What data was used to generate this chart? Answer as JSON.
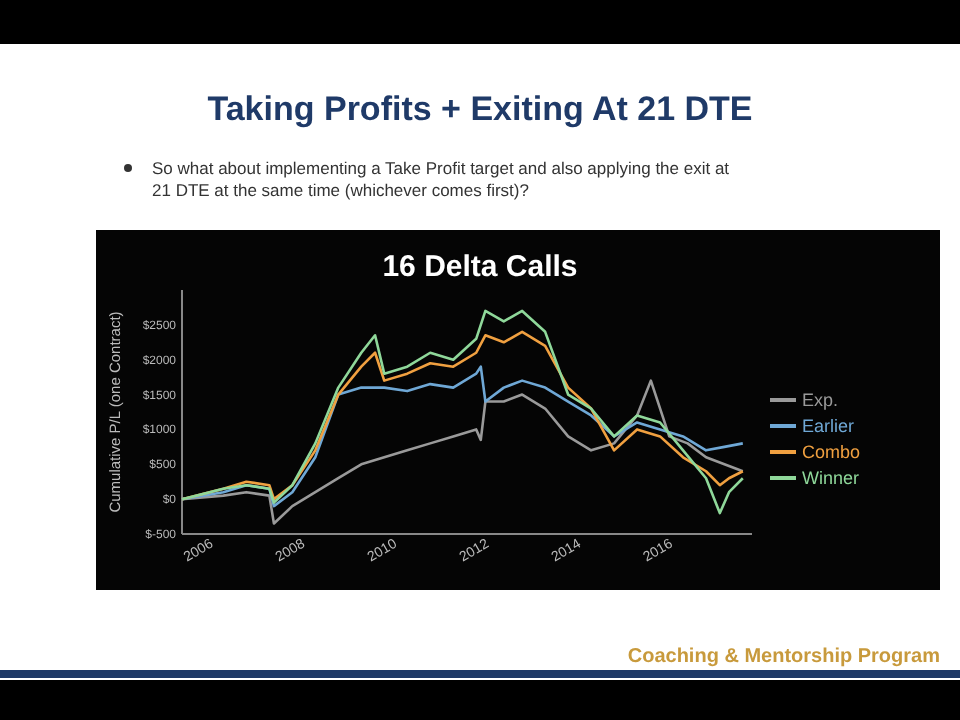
{
  "chart_data": {
    "type": "line",
    "title": "Taking Profits + Exiting At 21 DTE",
    "subtitle": "So what about implementing a Take Profit target and also applying the exit at 21 DTE at the same time (whichever comes first)?",
    "annotations": [
      "16 Delta Calls",
      "Coaching & Mentorship Program"
    ],
    "ylabel": "Cumulative P/L (one Contract)",
    "xlim": [
      2005.6,
      2018.0
    ],
    "xticks": [
      2006,
      2008,
      2010,
      2012,
      2014,
      2016
    ],
    "ylim": [
      -500,
      3000
    ],
    "yticks": [
      {
        "value": -500,
        "label": "$-500"
      },
      {
        "value": 0,
        "label": "$0"
      },
      {
        "value": 500,
        "label": "$500"
      },
      {
        "value": 1000,
        "label": "$1000"
      },
      {
        "value": 1500,
        "label": "$1500"
      },
      {
        "value": 2000,
        "label": "$2000"
      },
      {
        "value": 2500,
        "label": "$2500"
      }
    ],
    "legend": "right",
    "line_style": "solid",
    "series": [
      {
        "name": "Exp.",
        "color": "#9a9a9a",
        "x": [
          2005.6,
          2006.5,
          2007.0,
          2007.5,
          2007.6,
          2008.0,
          2008.5,
          2009.0,
          2009.5,
          2010.0,
          2010.5,
          2011.0,
          2011.5,
          2012.0,
          2012.1,
          2012.2,
          2012.6,
          2013.0,
          2013.5,
          2014.0,
          2014.5,
          2015.0,
          2015.5,
          2015.8,
          2016.2,
          2016.6,
          2017.0,
          2017.4,
          2017.8
        ],
        "values": [
          0,
          50,
          100,
          50,
          -350,
          -100,
          100,
          300,
          500,
          600,
          700,
          800,
          900,
          1000,
          850,
          1400,
          1400,
          1500,
          1300,
          900,
          700,
          800,
          1200,
          1700,
          900,
          800,
          600,
          500,
          400
        ]
      },
      {
        "name": "Earlier",
        "color": "#6fa8d6",
        "x": [
          2005.6,
          2006.5,
          2007.0,
          2007.5,
          2007.6,
          2008.0,
          2008.5,
          2009.0,
          2009.5,
          2010.0,
          2010.5,
          2011.0,
          2011.5,
          2012.0,
          2012.1,
          2012.2,
          2012.6,
          2013.0,
          2013.5,
          2014.0,
          2014.5,
          2015.0,
          2015.5,
          2016.0,
          2016.5,
          2017.0,
          2017.4,
          2017.8
        ],
        "values": [
          0,
          100,
          200,
          150,
          -100,
          100,
          600,
          1500,
          1600,
          1600,
          1550,
          1650,
          1600,
          1800,
          1900,
          1400,
          1600,
          1700,
          1600,
          1400,
          1200,
          900,
          1100,
          1000,
          900,
          700,
          750,
          800
        ]
      },
      {
        "name": "Combo",
        "color": "#f0a040",
        "x": [
          2005.6,
          2006.5,
          2007.0,
          2007.5,
          2007.6,
          2008.0,
          2008.5,
          2009.0,
          2009.5,
          2009.8,
          2010.0,
          2010.5,
          2011.0,
          2011.5,
          2012.0,
          2012.2,
          2012.6,
          2013.0,
          2013.5,
          2014.0,
          2014.5,
          2015.0,
          2015.5,
          2016.0,
          2016.5,
          2017.0,
          2017.3,
          2017.5,
          2017.8
        ],
        "values": [
          0,
          150,
          250,
          200,
          0,
          200,
          700,
          1500,
          1900,
          2100,
          1700,
          1800,
          1950,
          1900,
          2100,
          2350,
          2250,
          2400,
          2200,
          1600,
          1300,
          700,
          1000,
          900,
          600,
          400,
          200,
          300,
          400
        ]
      },
      {
        "name": "Winner",
        "color": "#8fd89a",
        "x": [
          2005.6,
          2006.5,
          2007.0,
          2007.5,
          2007.6,
          2008.0,
          2008.5,
          2009.0,
          2009.5,
          2009.8,
          2010.0,
          2010.5,
          2011.0,
          2011.5,
          2012.0,
          2012.2,
          2012.6,
          2013.0,
          2013.5,
          2014.0,
          2014.5,
          2015.0,
          2015.5,
          2016.0,
          2016.5,
          2017.0,
          2017.3,
          2017.5,
          2017.8
        ],
        "values": [
          0,
          150,
          200,
          150,
          -50,
          200,
          800,
          1600,
          2100,
          2350,
          1800,
          1900,
          2100,
          2000,
          2300,
          2700,
          2550,
          2700,
          2400,
          1500,
          1300,
          900,
          1200,
          1100,
          700,
          300,
          -200,
          100,
          300
        ]
      }
    ]
  }
}
